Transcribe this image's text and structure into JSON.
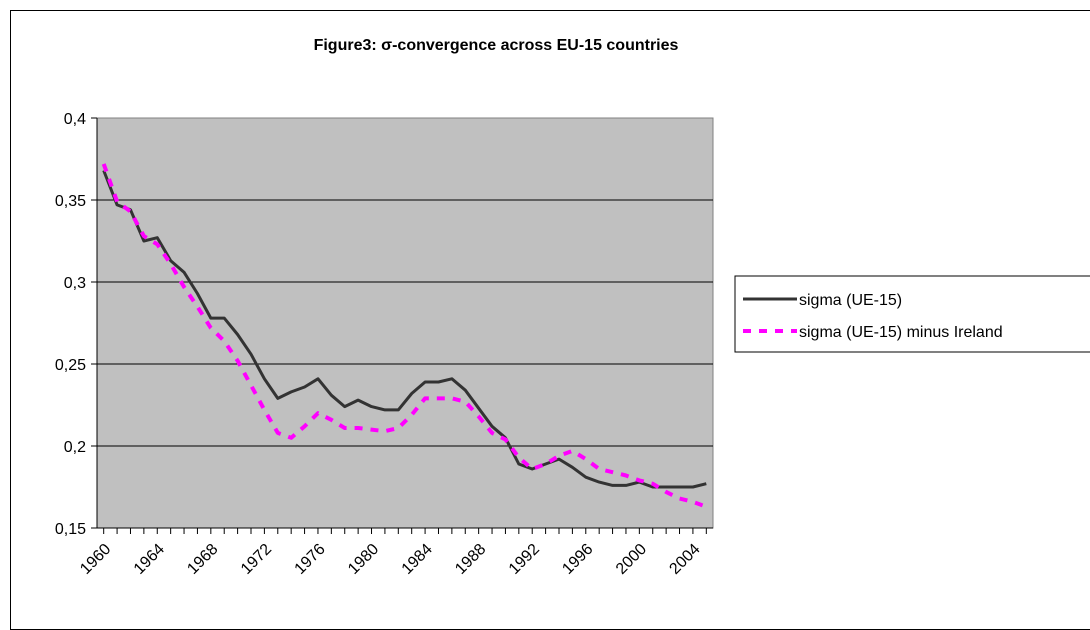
{
  "chart_data": {
    "type": "line",
    "title": "Figure3: σ-convergence across EU-15 countries",
    "xlabel": "",
    "ylabel": "",
    "ylim": [
      0.15,
      0.4
    ],
    "xlim": [
      1960,
      2005
    ],
    "y_ticks": [
      "0,15",
      "0,2",
      "0,25",
      "0,3",
      "0,35",
      "0,4"
    ],
    "y_tick_values": [
      0.15,
      0.2,
      0.25,
      0.3,
      0.35,
      0.4
    ],
    "x_ticks": [
      "1960",
      "1964",
      "1968",
      "1972",
      "1976",
      "1980",
      "1984",
      "1988",
      "1992",
      "1996",
      "2000",
      "2004"
    ],
    "x_tick_values": [
      1960,
      1964,
      1968,
      1972,
      1976,
      1980,
      1984,
      1988,
      1992,
      1996,
      2000,
      2004
    ],
    "grid": true,
    "legend_position": "right",
    "plot_background": "#c0c0c0",
    "x": [
      1960,
      1961,
      1962,
      1963,
      1964,
      1965,
      1966,
      1967,
      1968,
      1969,
      1970,
      1971,
      1972,
      1973,
      1974,
      1975,
      1976,
      1977,
      1978,
      1979,
      1980,
      1981,
      1982,
      1983,
      1984,
      1985,
      1986,
      1987,
      1988,
      1989,
      1990,
      1991,
      1992,
      1993,
      1994,
      1995,
      1996,
      1997,
      1998,
      1999,
      2000,
      2001,
      2002,
      2003,
      2004,
      2005
    ],
    "series": [
      {
        "name": "sigma (UE-15)",
        "color": "#333333",
        "style": "solid",
        "values": [
          0.368,
          0.347,
          0.344,
          0.325,
          0.327,
          0.313,
          0.306,
          0.293,
          0.278,
          0.278,
          0.268,
          0.256,
          0.241,
          0.229,
          0.233,
          0.236,
          0.241,
          0.231,
          0.224,
          0.228,
          0.224,
          0.222,
          0.222,
          0.232,
          0.239,
          0.239,
          0.241,
          0.234,
          0.223,
          0.212,
          0.205,
          0.189,
          0.186,
          0.189,
          0.192,
          0.187,
          0.181,
          0.178,
          0.176,
          0.176,
          0.178,
          0.175,
          0.175,
          0.175,
          0.175,
          0.177
        ]
      },
      {
        "name": "sigma (UE-15) minus Ireland",
        "color": "#ff00ff",
        "style": "dashed",
        "values": [
          0.372,
          0.349,
          0.343,
          0.328,
          0.323,
          0.311,
          0.297,
          0.285,
          0.272,
          0.264,
          0.252,
          0.237,
          0.222,
          0.208,
          0.205,
          0.212,
          0.22,
          0.216,
          0.211,
          0.211,
          0.21,
          0.209,
          0.211,
          0.219,
          0.229,
          0.229,
          0.229,
          0.227,
          0.218,
          0.208,
          0.204,
          0.193,
          0.186,
          0.189,
          0.194,
          0.197,
          0.192,
          0.186,
          0.184,
          0.182,
          0.179,
          0.177,
          0.172,
          0.168,
          0.166,
          0.163
        ]
      }
    ]
  }
}
